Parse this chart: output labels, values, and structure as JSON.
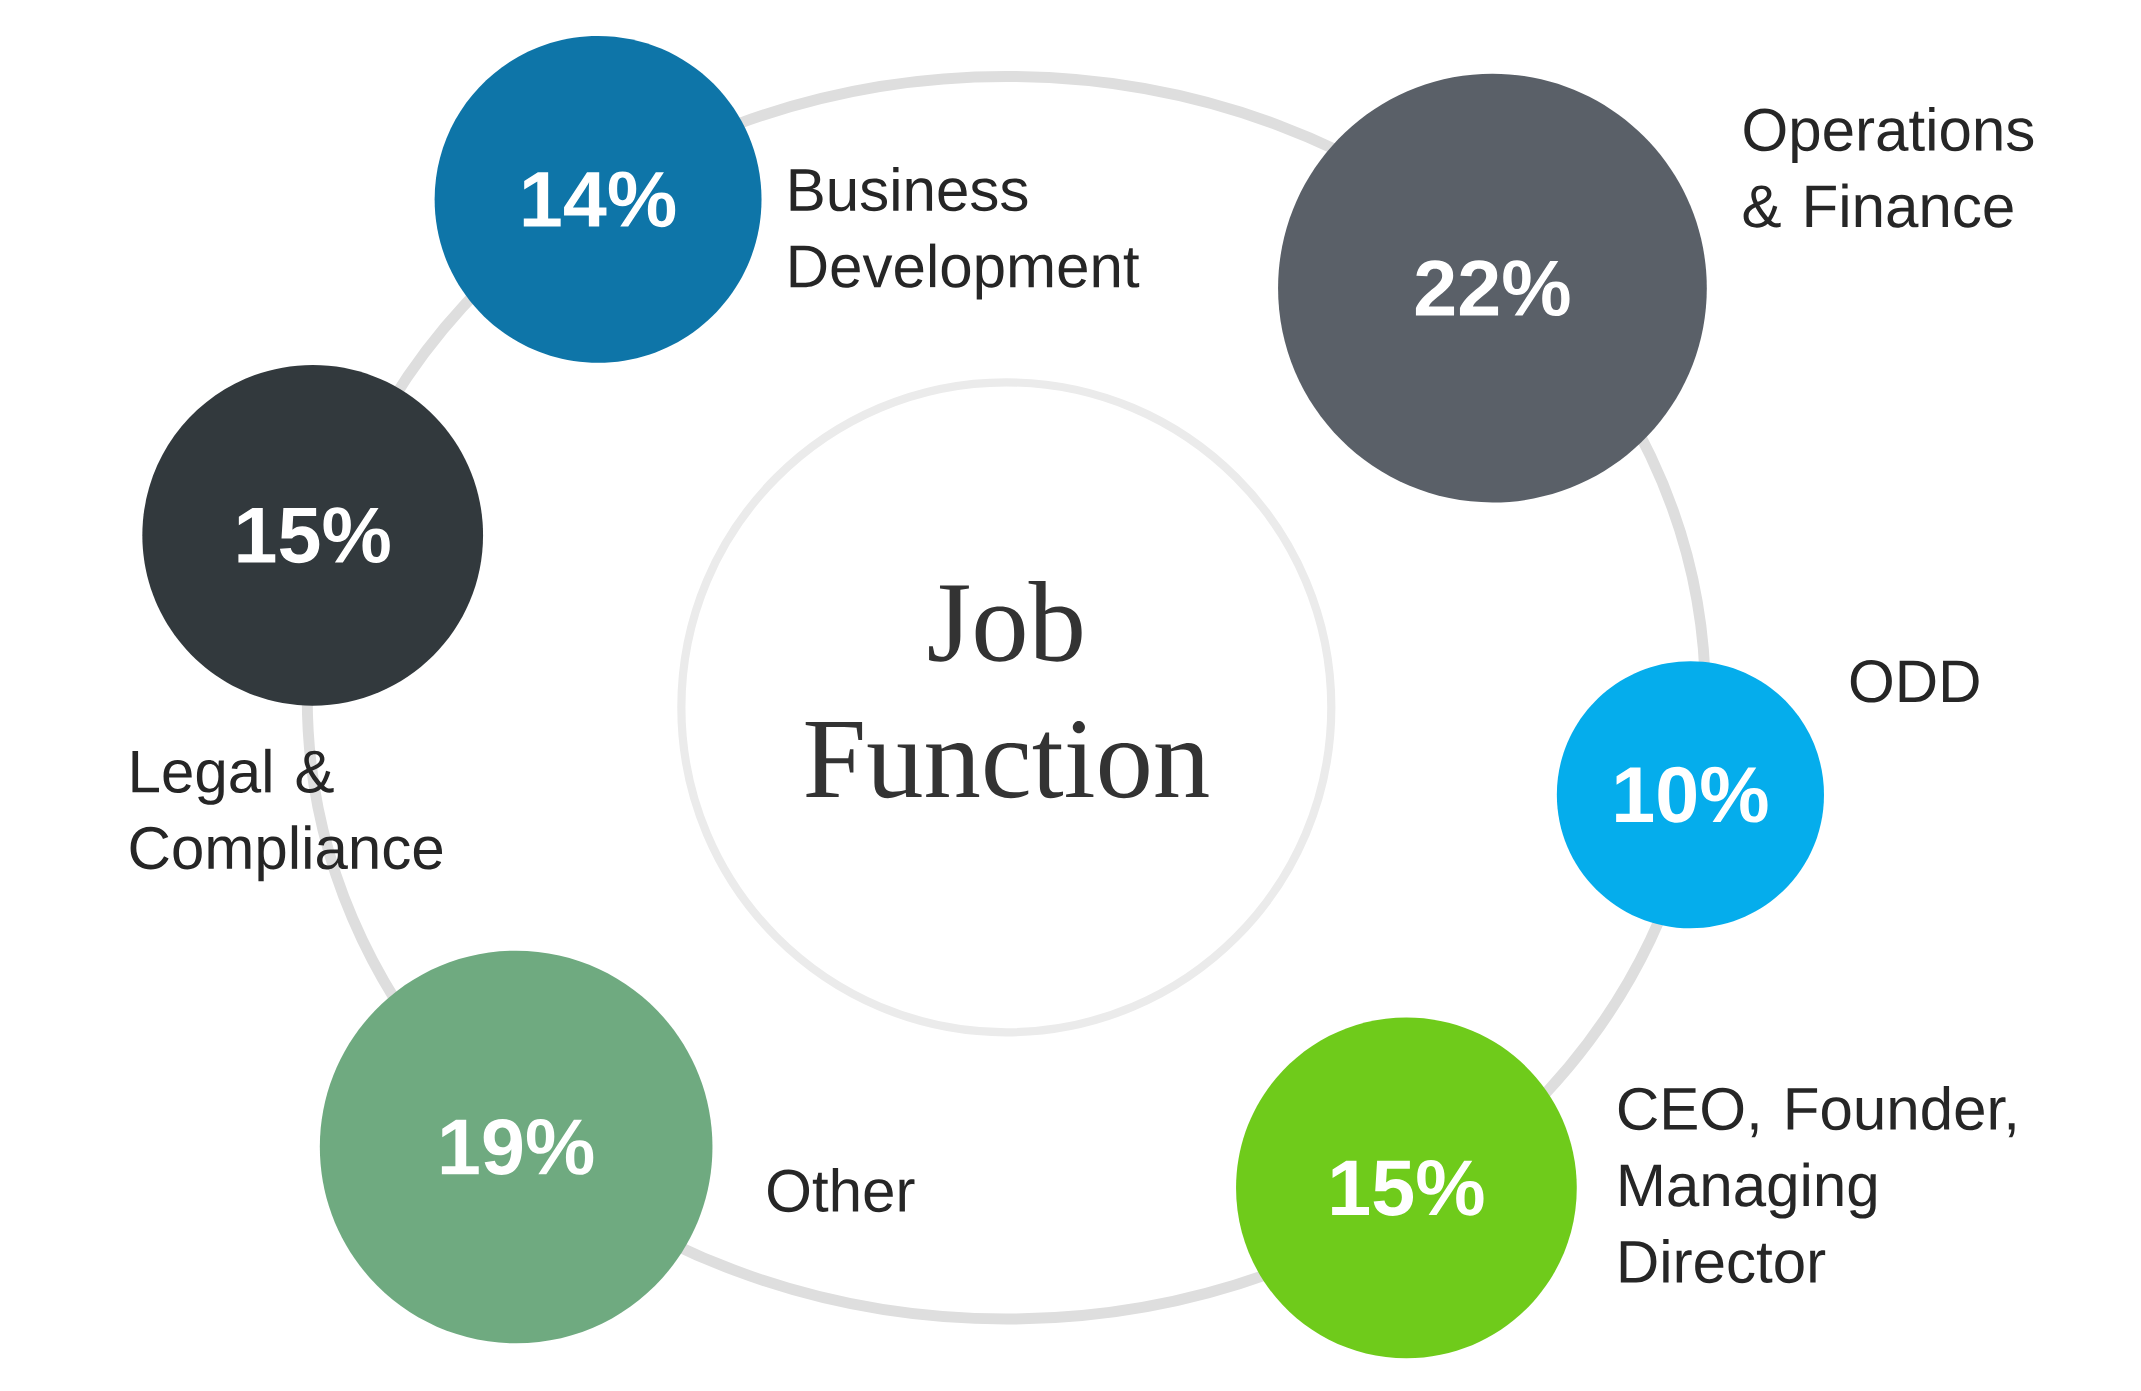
{
  "chart_data": {
    "type": "other",
    "title": "Job Function",
    "categories": [
      "Business Development",
      "Operations & Finance",
      "ODD",
      "CEO, Founder, Managing Director",
      "Other",
      "Legal & Compliance"
    ],
    "values": [
      14,
      22,
      10,
      15,
      19,
      15
    ],
    "value_labels": [
      "14%",
      "22%",
      "10%",
      "15%",
      "19%",
      "15%"
    ],
    "colors": [
      "#0e75a8",
      "#5a6068",
      "#05adec",
      "#6fcb1b",
      "#6faa80",
      "#32393d"
    ]
  }
}
